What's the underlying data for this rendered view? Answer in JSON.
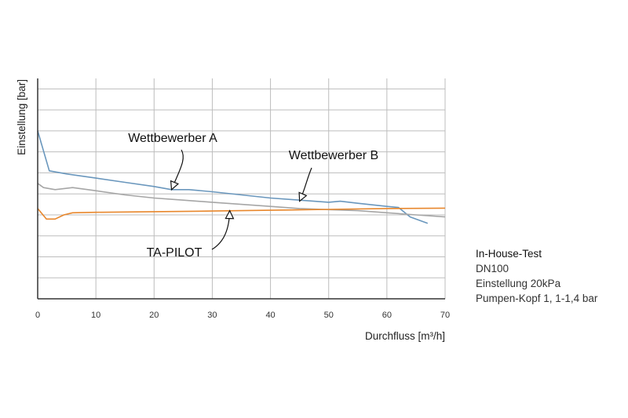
{
  "chart_data": {
    "type": "line",
    "xlabel": "Durchfluss [m³/h]",
    "ylabel": "Einstellung [bar]",
    "xlim": [
      0,
      70
    ],
    "xticks": [
      0,
      10,
      20,
      30,
      40,
      50,
      60,
      70
    ],
    "ylim": [
      0,
      10.5
    ],
    "grid": true,
    "y_tick_labels_shown": false,
    "series": [
      {
        "name": "Wettbewerber A",
        "color": "#6a97bd",
        "x": [
          0,
          2,
          5,
          10,
          15,
          20,
          23,
          26,
          30,
          35,
          40,
          45,
          50,
          52,
          55,
          60,
          62,
          64,
          67
        ],
        "y": [
          8.0,
          6.1,
          5.95,
          5.75,
          5.55,
          5.35,
          5.2,
          5.2,
          5.1,
          4.95,
          4.8,
          4.7,
          4.6,
          4.65,
          4.55,
          4.4,
          4.35,
          3.9,
          3.6
        ]
      },
      {
        "name": "Wettbewerber B",
        "color": "#a6a6a6",
        "x": [
          0,
          1,
          3,
          6,
          10,
          15,
          20,
          25,
          30,
          35,
          40,
          45,
          50,
          55,
          60,
          65,
          70
        ],
        "y": [
          5.5,
          5.3,
          5.2,
          5.3,
          5.15,
          4.95,
          4.8,
          4.7,
          4.6,
          4.5,
          4.4,
          4.3,
          4.25,
          4.2,
          4.1,
          4.0,
          3.9
        ]
      },
      {
        "name": "TA-PILOT",
        "color": "#e8872c",
        "x": [
          0,
          1.5,
          3,
          4.5,
          6,
          10,
          20,
          30,
          40,
          50,
          60,
          70
        ],
        "y": [
          4.3,
          3.8,
          3.8,
          4.0,
          4.1,
          4.12,
          4.15,
          4.18,
          4.22,
          4.26,
          4.3,
          4.32
        ]
      }
    ],
    "annotations": [
      {
        "text": "Wettbewerber A",
        "series": 0,
        "x": 23,
        "y": 5.2
      },
      {
        "text": "Wettbewerber B",
        "series": 1,
        "x": 45,
        "y": 4.65
      },
      {
        "text": "TA-PILOT",
        "series": 2,
        "x": 33,
        "y": 4.2
      }
    ]
  },
  "info": {
    "heading": "In-House-Test",
    "lines": [
      "DN100",
      "Einstellung 20kPa",
      "Pumpen-Kopf 1, 1-1,4 bar"
    ]
  }
}
